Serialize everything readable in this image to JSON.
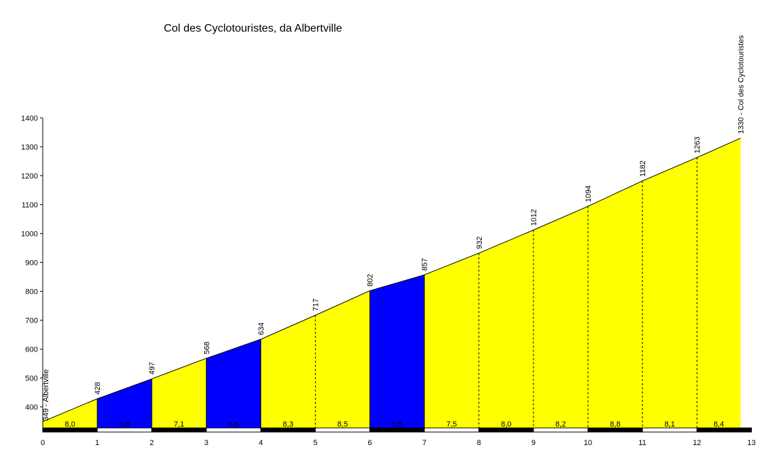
{
  "chart_data": {
    "type": "area",
    "title": "Col des Cyclotouristes, da Albertville",
    "xlabel": "",
    "ylabel": "",
    "xlim": [
      0,
      13
    ],
    "ylim": [
      320,
      1400
    ],
    "y_ticks": [
      400,
      500,
      600,
      700,
      800,
      900,
      1000,
      1100,
      1200,
      1300,
      1400
    ],
    "x_ticks": [
      0,
      1,
      2,
      3,
      4,
      5,
      6,
      7,
      8,
      9,
      10,
      11,
      12,
      13
    ],
    "grid": false,
    "distance_km": [
      0,
      1,
      2,
      3,
      4,
      5,
      6,
      7,
      8,
      9,
      10,
      11,
      12,
      12.8
    ],
    "altitude_m": [
      349,
      428,
      497,
      568,
      634,
      717,
      802,
      857,
      932,
      1012,
      1094,
      1182,
      1263,
      1330
    ],
    "point_labels": [
      "349 - Albertville",
      "428",
      "497",
      "568",
      "634",
      "717",
      "802",
      "857",
      "932",
      "1012",
      "1094",
      "1182",
      "1263",
      "1330 - Col des Cyclotouristes"
    ],
    "segments": [
      {
        "label": "8,0",
        "color": "#ffff00"
      },
      {
        "label": "6,9",
        "color": "#0000ff"
      },
      {
        "label": "7,1",
        "color": "#ffff00"
      },
      {
        "label": "6,6",
        "color": "#0000ff"
      },
      {
        "label": "8,3",
        "color": "#ffff00"
      },
      {
        "label": "8,5",
        "color": "#ffff00"
      },
      {
        "label": "5,5",
        "color": "#0000ff"
      },
      {
        "label": "7,5",
        "color": "#ffff00"
      },
      {
        "label": "8,0",
        "color": "#ffff00"
      },
      {
        "label": "8,2",
        "color": "#ffff00"
      },
      {
        "label": "8,8",
        "color": "#ffff00"
      },
      {
        "label": "8,1",
        "color": "#ffff00"
      },
      {
        "label": "8,4",
        "color": "#ffff00"
      }
    ]
  }
}
